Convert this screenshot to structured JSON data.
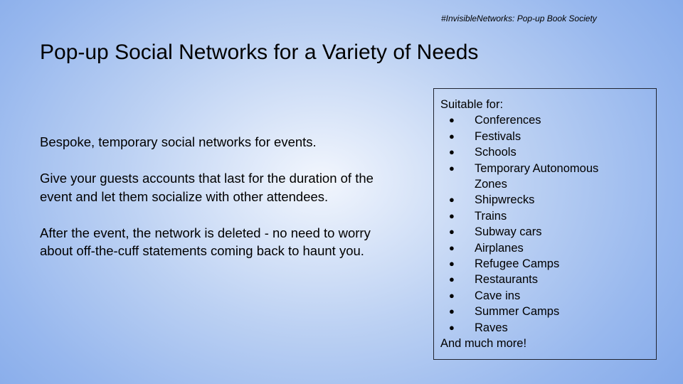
{
  "header": {
    "tag": "#InvisibleNetworks: Pop-up Book Society",
    "title": "Pop-up Social Networks for a Variety of Needs"
  },
  "body": {
    "paragraphs": [
      "Bespoke, temporary social networks for events.",
      "Give your guests accounts that last for the duration of the event and let them socialize with other attendees.",
      "After the event, the network is deleted - no need to worry about off-the-cuff statements coming back to haunt you."
    ]
  },
  "sidebar": {
    "heading": "Suitable for:",
    "bullet_glyph": "●",
    "items": [
      "Conferences",
      "Festivals",
      "Schools",
      "Temporary Autonomous Zones",
      "Shipwrecks",
      "Trains",
      "Subway cars",
      "Airplanes",
      "Refugee Camps",
      "Restaurants",
      "Cave ins",
      "Summer Camps",
      "Raves"
    ],
    "footer": "And much more!"
  }
}
